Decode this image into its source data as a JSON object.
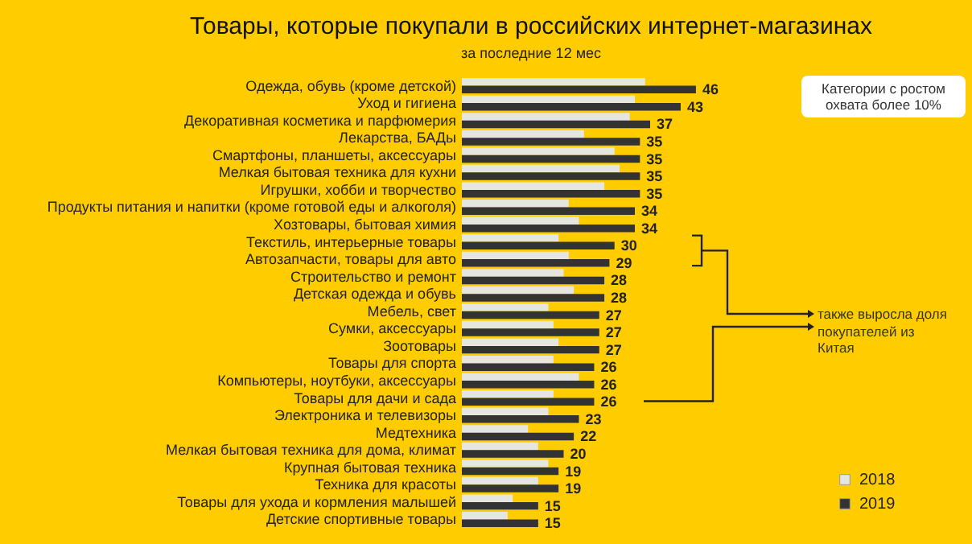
{
  "chart_data": {
    "type": "bar",
    "orientation": "horizontal",
    "title": "Товары, которые покупали в российских интернет-магазинах",
    "subtitle": "за последние 12 мес",
    "categories": [
      "Одежда, обувь (кроме детской)",
      "Уход и гигиена",
      "Декоративная косметика и парфюмерия",
      "Лекарства, БАДы",
      "Смартфоны, планшеты, аксессуары",
      "Мелкая бытовая техника для кухни",
      "Игрушки, хобби и творчество",
      "Продукты питания и напитки (кроме готовой еды и алкоголя)",
      "Хозтовары, бытовая химия",
      "Текстиль, интерьерные товары",
      "Автозапчасти, товары для авто",
      "Строительство и ремонт",
      "Детская одежда и обувь",
      "Мебель, свет",
      "Сумки, аксессуары",
      "Зоотовары",
      "Товары для спорта",
      "Компьютеры, ноутбуки, аксессуары",
      "Товары для дачи и сада",
      "Электроника и телевизоры",
      "Медтехника",
      "Мелкая бытовая техника для дома, климат",
      "Крупная бытовая техника",
      "Техника для красоты",
      "Товары для ухода и кормления малышей",
      "Детские спортивные товары"
    ],
    "series": [
      {
        "name": "2018",
        "color": "#e6e6e0",
        "values": [
          36,
          34,
          33,
          24,
          30,
          31,
          28,
          21,
          23,
          19,
          21,
          20,
          22,
          17,
          18,
          19,
          18,
          23,
          18,
          17,
          13,
          15,
          17,
          15,
          10,
          9
        ]
      },
      {
        "name": "2019",
        "color": "#333333",
        "values": [
          46,
          43,
          37,
          35,
          35,
          35,
          35,
          34,
          34,
          30,
          29,
          28,
          28,
          27,
          27,
          27,
          26,
          26,
          26,
          23,
          22,
          20,
          19,
          19,
          15,
          15
        ],
        "value_labels": [
          "46",
          "43",
          "37",
          "35",
          "35",
          "35",
          "35",
          "34",
          "34",
          "30",
          "29",
          "28",
          "28",
          "27",
          "27",
          "27",
          "26",
          "26",
          "26",
          "23",
          "22",
          "20",
          "19",
          "19",
          "15",
          "15"
        ]
      }
    ],
    "annotations": [
      "Категории с ростом охвата более 10%",
      "также выросла доля покупателей из Китая"
    ],
    "legend": "bottom right"
  }
}
